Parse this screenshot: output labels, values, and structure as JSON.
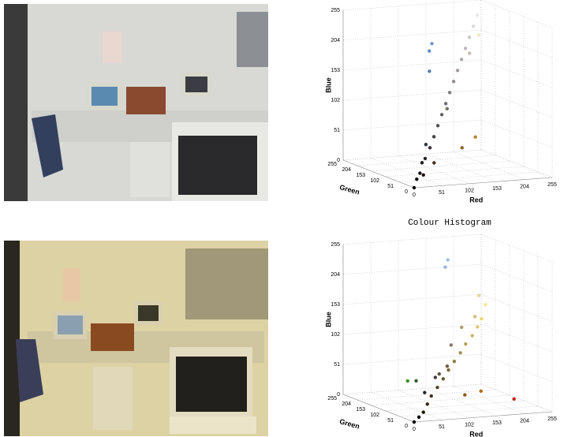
{
  "chart_data": [
    {
      "type": "scatter3d",
      "xlabel": "Red",
      "ylabel": "Green",
      "zlabel": "Blue",
      "xlabel_color": "#e03030",
      "ylabel_color": "#20d020",
      "zlabel_color": "#2020e0",
      "xlim": [
        0,
        255
      ],
      "ylim": [
        0,
        255
      ],
      "zlim": [
        0,
        255
      ],
      "xticks": [
        0,
        51,
        102,
        153,
        204,
        255
      ],
      "yticks": [
        0,
        51,
        102,
        153,
        204,
        255
      ],
      "zticks": [
        0,
        51,
        102,
        153,
        204,
        255
      ],
      "grid": true,
      "points": [
        [
          0,
          0,
          0
        ],
        [
          10,
          10,
          12
        ],
        [
          20,
          18,
          20
        ],
        [
          30,
          30,
          35
        ],
        [
          40,
          38,
          40
        ],
        [
          55,
          50,
          55
        ],
        [
          70,
          65,
          70
        ],
        [
          85,
          80,
          85
        ],
        [
          100,
          95,
          100
        ],
        [
          115,
          110,
          115
        ],
        [
          130,
          125,
          130
        ],
        [
          145,
          140,
          145
        ],
        [
          160,
          155,
          160
        ],
        [
          175,
          170,
          175
        ],
        [
          190,
          185,
          190
        ],
        [
          205,
          200,
          205
        ],
        [
          220,
          215,
          220
        ],
        [
          235,
          230,
          235
        ],
        [
          250,
          248,
          250
        ],
        [
          60,
          45,
          30
        ],
        [
          140,
          100,
          40
        ],
        [
          180,
          130,
          50
        ],
        [
          90,
          120,
          170
        ],
        [
          100,
          140,
          200
        ],
        [
          110,
          150,
          210
        ],
        [
          200,
          190,
          180
        ],
        [
          30,
          25,
          15
        ],
        [
          50,
          55,
          60
        ],
        [
          120,
          115,
          105
        ],
        [
          240,
          235,
          200
        ]
      ]
    },
    {
      "type": "scatter3d",
      "title": "Colour Histogram",
      "xlabel": "Red",
      "ylabel": "Green",
      "zlabel": "Blue",
      "xlabel_color": "#e03030",
      "ylabel_color": "#20d020",
      "zlabel_color": "#2020e0",
      "xlim": [
        0,
        255
      ],
      "ylim": [
        0,
        255
      ],
      "zlim": [
        0,
        255
      ],
      "xticks": [
        0,
        51,
        102,
        153,
        204,
        255
      ],
      "yticks": [
        0,
        51,
        102,
        153,
        204,
        255
      ],
      "zticks": [
        0,
        51,
        102,
        153,
        204,
        255
      ],
      "grid": true,
      "points": [
        [
          0,
          0,
          0
        ],
        [
          15,
          12,
          5
        ],
        [
          30,
          25,
          10
        ],
        [
          45,
          40,
          20
        ],
        [
          60,
          55,
          30
        ],
        [
          80,
          72,
          40
        ],
        [
          100,
          90,
          50
        ],
        [
          120,
          110,
          60
        ],
        [
          140,
          128,
          70
        ],
        [
          160,
          145,
          80
        ],
        [
          180,
          165,
          90
        ],
        [
          200,
          180,
          100
        ],
        [
          220,
          200,
          110
        ],
        [
          235,
          215,
          120
        ],
        [
          250,
          230,
          140
        ],
        [
          140,
          90,
          20
        ],
        [
          180,
          110,
          20
        ],
        [
          200,
          30,
          20
        ],
        [
          160,
          190,
          230
        ],
        [
          150,
          180,
          220
        ],
        [
          50,
          90,
          50
        ],
        [
          40,
          40,
          40
        ],
        [
          70,
          60,
          60
        ],
        [
          110,
          95,
          70
        ],
        [
          90,
          85,
          60
        ],
        [
          60,
          140,
          40
        ],
        [
          130,
          120,
          100
        ],
        [
          170,
          160,
          120
        ],
        [
          210,
          190,
          130
        ],
        [
          230,
          215,
          160
        ]
      ]
    }
  ]
}
